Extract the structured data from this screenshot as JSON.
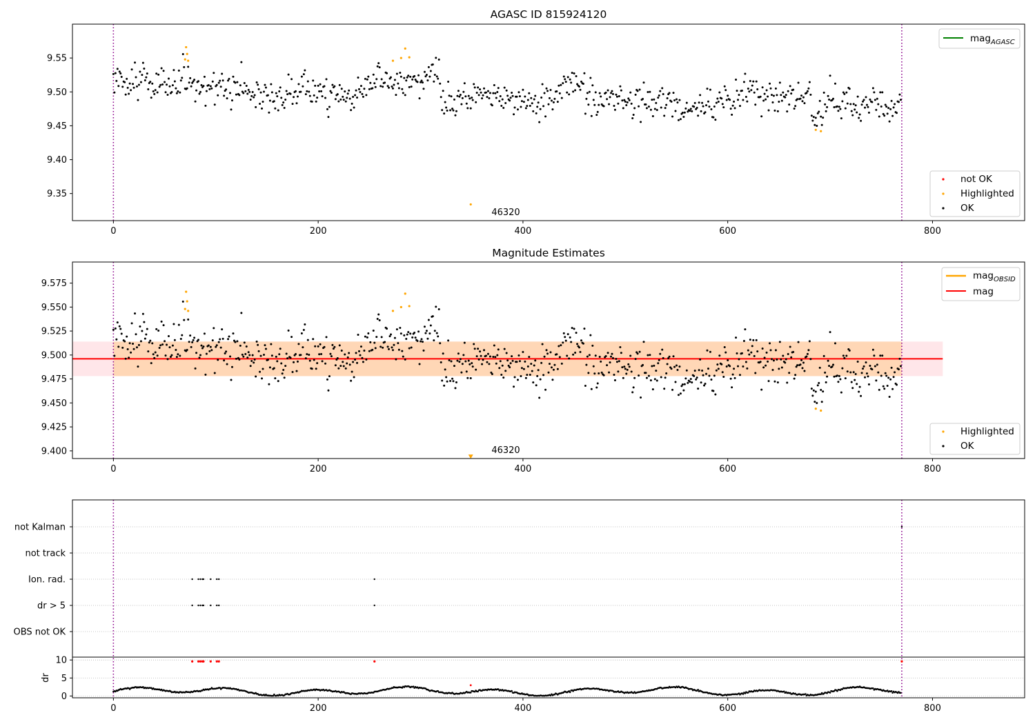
{
  "chart_data": [
    {
      "type": "scatter",
      "title": "AGASC ID 815924120",
      "xlim": [
        -40,
        890
      ],
      "ylim": [
        9.31,
        9.6
      ],
      "xticks": [
        0,
        200,
        400,
        600,
        800
      ],
      "yticks": [
        9.35,
        9.4,
        9.45,
        9.5,
        9.55
      ],
      "ytick_labels": [
        "9.35",
        "9.40",
        "9.45",
        "9.50",
        "9.55"
      ],
      "obs_boundaries": [
        0,
        770
      ],
      "annotations": [
        {
          "text": "46320",
          "x": 385,
          "y": 9.32
        }
      ],
      "legend_upper": {
        "position": "upper right",
        "entries": [
          {
            "label": "mag",
            "subscript": "AGASC",
            "color": "#008000",
            "kind": "line"
          }
        ]
      },
      "legend_lower": {
        "position": "lower right",
        "entries": [
          {
            "label": "not OK",
            "color": "#ff0000",
            "kind": "point"
          },
          {
            "label": "Highlighted",
            "color": "#ffa500",
            "kind": "point"
          },
          {
            "label": "OK",
            "color": "#000000",
            "kind": "point"
          }
        ]
      },
      "series": [
        {
          "name": "OK",
          "color": "#000000",
          "trend": [
            [
              0,
              9.515
            ],
            [
              100,
              9.505
            ],
            [
              150,
              9.495
            ],
            [
              200,
              9.502
            ],
            [
              232,
              9.49
            ],
            [
              250,
              9.512
            ],
            [
              300,
              9.518
            ],
            [
              318,
              9.52
            ],
            [
              320,
              9.485
            ],
            [
              345,
              9.492
            ],
            [
              360,
              9.498
            ],
            [
              400,
              9.485
            ],
            [
              420,
              9.48
            ],
            [
              440,
              9.505
            ],
            [
              460,
              9.512
            ],
            [
              462,
              9.49
            ],
            [
              500,
              9.49
            ],
            [
              540,
              9.485
            ],
            [
              570,
              9.47
            ],
            [
              600,
              9.49
            ],
            [
              620,
              9.5
            ],
            [
              650,
              9.49
            ],
            [
              680,
              9.495
            ],
            [
              685,
              9.455
            ],
            [
              700,
              9.49
            ],
            [
              730,
              9.48
            ],
            [
              770,
              9.485
            ]
          ],
          "n_points": 770,
          "scatter_sd": 0.012
        },
        {
          "name": "Highlighted",
          "color": "#ffa500",
          "points": [
            [
              70,
              9.548
            ],
            [
              71,
              9.566
            ],
            [
              72,
              9.556
            ],
            [
              73,
              9.546
            ],
            [
              273,
              9.546
            ],
            [
              281,
              9.55
            ],
            [
              285,
              9.564
            ],
            [
              289,
              9.551
            ],
            [
              349,
              9.334
            ],
            [
              686,
              9.444
            ],
            [
              691,
              9.442
            ]
          ]
        }
      ]
    },
    {
      "type": "scatter",
      "title": "Magnitude Estimates",
      "xlim": [
        -40,
        890
      ],
      "ylim": [
        9.392,
        9.597
      ],
      "xticks": [
        0,
        200,
        400,
        600,
        800
      ],
      "yticks": [
        9.4,
        9.425,
        9.45,
        9.475,
        9.5,
        9.525,
        9.55,
        9.575
      ],
      "ytick_labels": [
        "9.400",
        "9.425",
        "9.450",
        "9.475",
        "9.500",
        "9.525",
        "9.550",
        "9.575"
      ],
      "obs_boundaries": [
        0,
        770
      ],
      "annotations": [
        {
          "text": "46320",
          "x": 385,
          "y": 9.397
        }
      ],
      "mag_line": {
        "value": 9.496,
        "x_range": [
          -40,
          810
        ],
        "color": "#ff0000"
      },
      "mag_obsid_band": {
        "range": [
          9.478,
          9.514
        ],
        "x_range": [
          0,
          770
        ],
        "color": "#ffa500"
      },
      "mag_band": {
        "range": [
          9.478,
          9.514
        ],
        "x_range": [
          -40,
          810
        ],
        "color": "#ffb6c1"
      },
      "offscale_marker": {
        "x": 349,
        "y": 9.394,
        "color": "#ffa500"
      },
      "legend_upper": {
        "position": "upper right",
        "entries": [
          {
            "label": "mag",
            "subscript": "OBSID",
            "color": "#ffa500",
            "kind": "line"
          },
          {
            "label": "mag",
            "color": "#ff0000",
            "kind": "line"
          }
        ]
      },
      "legend_lower": {
        "position": "lower right",
        "entries": [
          {
            "label": "Highlighted",
            "color": "#ffa500",
            "kind": "point"
          },
          {
            "label": "OK",
            "color": "#000000",
            "kind": "point"
          }
        ]
      }
    },
    {
      "type": "scatter",
      "title": "",
      "xlim": [
        -40,
        890
      ],
      "xticks": [
        0,
        200,
        400,
        600,
        800
      ],
      "obs_boundaries": [
        0,
        770
      ],
      "flag_rows": [
        "not Kalman",
        "not track",
        "Ion. rad.",
        "dr > 5",
        "OBS not OK"
      ],
      "flag_points": {
        "not Kalman": [
          770
        ],
        "not track": [],
        "Ion. rad.": [
          77,
          83,
          85,
          87,
          88,
          95,
          101,
          103,
          255
        ],
        "dr > 5": [
          77,
          83,
          85,
          87,
          88,
          95,
          101,
          103,
          255
        ],
        "OBS not OK": []
      },
      "dr_ylim": [
        -0.5,
        10.8
      ],
      "dr_yticks": [
        0,
        5,
        10
      ],
      "dr_ylabel": "dr",
      "dr_high_points": [
        77,
        83,
        85,
        87,
        88,
        95,
        101,
        103,
        255,
        770
      ],
      "dr_baseline_mean": 1.3
    }
  ]
}
